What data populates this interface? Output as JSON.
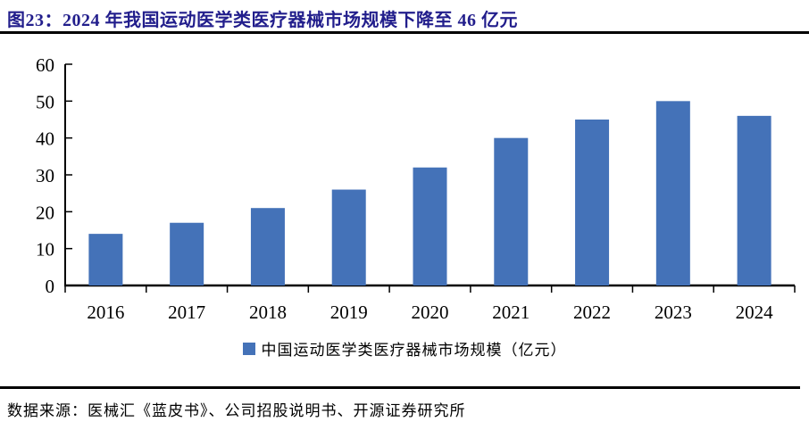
{
  "header": {
    "title": "图23：2024 年我国运动医学类医疗器械市场规模下降至 46 亿元"
  },
  "chart_data": {
    "type": "bar",
    "title": "图23：2024 年我国运动医学类医疗器械市场规模下降至 46 亿元",
    "categories": [
      "2016",
      "2017",
      "2018",
      "2019",
      "2020",
      "2021",
      "2022",
      "2023",
      "2024"
    ],
    "values": [
      14,
      17,
      21,
      26,
      32,
      40,
      45,
      50,
      46
    ],
    "legend": [
      "中国运动医学类医疗器械市场规模（亿元）"
    ],
    "xlabel": "",
    "ylabel": "",
    "ylim": [
      0,
      60
    ],
    "ytick_step": 10,
    "yticks": [
      0,
      10,
      20,
      30,
      40,
      50,
      60
    ],
    "grid": false,
    "legend_position": "bottom",
    "bar_color": "#4472B8",
    "axis_color": "#000000",
    "tick_label_color": "#000000"
  },
  "footer": {
    "source": "数据来源：医械汇《蓝皮书》、公司招股说明书、开源证券研究所"
  },
  "style": {
    "title_color": "#221E8C",
    "rule_color": "#000000",
    "background": "#FFFFFF"
  }
}
